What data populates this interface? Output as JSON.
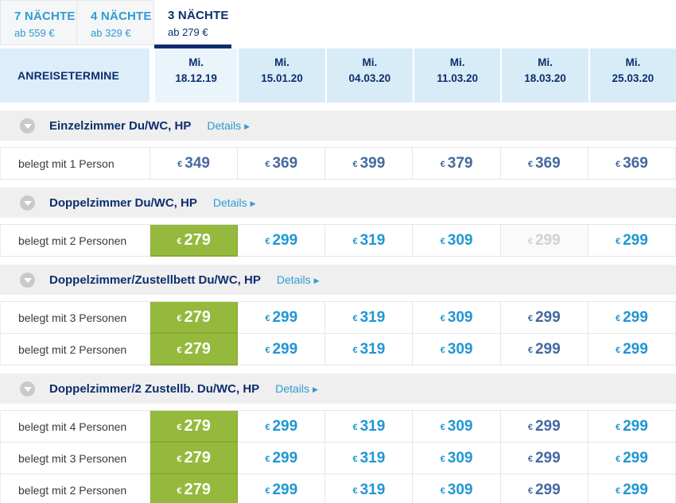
{
  "colors": {
    "accent_navy": "#0d2e6d",
    "link_blue": "#2e9bd2",
    "bright_price_blue": "#2196d4",
    "steel_price_blue": "#46699f",
    "best_price_green": "#94b93c",
    "sold_out_gray": "#cdd2d8"
  },
  "tabs": [
    {
      "label": "7 NÄCHTE",
      "sub": "ab 559 €",
      "active": false
    },
    {
      "label": "4 NÄCHTE",
      "sub": "ab 329 €",
      "active": false
    },
    {
      "label": "3 NÄCHTE",
      "sub": "ab 279 €",
      "active": true
    }
  ],
  "header": {
    "label": "ANREISETERMINE",
    "dates": [
      {
        "day": "Mi.",
        "date": "18.12.19"
      },
      {
        "day": "Mi.",
        "date": "15.01.20"
      },
      {
        "day": "Mi.",
        "date": "04.03.20"
      },
      {
        "day": "Mi.",
        "date": "11.03.20"
      },
      {
        "day": "Mi.",
        "date": "18.03.20"
      },
      {
        "day": "Mi.",
        "date": "25.03.20"
      }
    ]
  },
  "details_label": "Details",
  "groups": [
    {
      "title": "Einzelzimmer Du/WC, HP",
      "rows": [
        {
          "label": "belegt mit 1 Person",
          "prices": [
            {
              "currency": "€",
              "amount": "349",
              "style": "steel"
            },
            {
              "currency": "€",
              "amount": "369",
              "style": "steel"
            },
            {
              "currency": "€",
              "amount": "399",
              "style": "steel"
            },
            {
              "currency": "€",
              "amount": "379",
              "style": "steel"
            },
            {
              "currency": "€",
              "amount": "369",
              "style": "steel"
            },
            {
              "currency": "€",
              "amount": "369",
              "style": "steel"
            }
          ]
        }
      ]
    },
    {
      "title": "Doppelzimmer Du/WC, HP",
      "rows": [
        {
          "label": "belegt mit 2 Personen",
          "prices": [
            {
              "currency": "€",
              "amount": "279",
              "style": "best"
            },
            {
              "currency": "€",
              "amount": "299",
              "style": "bright"
            },
            {
              "currency": "€",
              "amount": "319",
              "style": "bright"
            },
            {
              "currency": "€",
              "amount": "309",
              "style": "bright"
            },
            {
              "currency": "€",
              "amount": "299",
              "style": "muted"
            },
            {
              "currency": "€",
              "amount": "299",
              "style": "bright"
            }
          ]
        }
      ]
    },
    {
      "title": "Doppelzimmer/Zustellbett Du/WC, HP",
      "rows": [
        {
          "label": "belegt mit 3 Personen",
          "prices": [
            {
              "currency": "€",
              "amount": "279",
              "style": "best"
            },
            {
              "currency": "€",
              "amount": "299",
              "style": "bright"
            },
            {
              "currency": "€",
              "amount": "319",
              "style": "bright"
            },
            {
              "currency": "€",
              "amount": "309",
              "style": "bright"
            },
            {
              "currency": "€",
              "amount": "299",
              "style": "steel"
            },
            {
              "currency": "€",
              "amount": "299",
              "style": "bright"
            }
          ]
        },
        {
          "label": "belegt mit 2 Personen",
          "prices": [
            {
              "currency": "€",
              "amount": "279",
              "style": "best"
            },
            {
              "currency": "€",
              "amount": "299",
              "style": "bright"
            },
            {
              "currency": "€",
              "amount": "319",
              "style": "bright"
            },
            {
              "currency": "€",
              "amount": "309",
              "style": "bright"
            },
            {
              "currency": "€",
              "amount": "299",
              "style": "steel"
            },
            {
              "currency": "€",
              "amount": "299",
              "style": "bright"
            }
          ]
        }
      ]
    },
    {
      "title": "Doppelzimmer/2 Zustellb. Du/WC, HP",
      "rows": [
        {
          "label": "belegt mit 4 Personen",
          "prices": [
            {
              "currency": "€",
              "amount": "279",
              "style": "best"
            },
            {
              "currency": "€",
              "amount": "299",
              "style": "bright"
            },
            {
              "currency": "€",
              "amount": "319",
              "style": "bright"
            },
            {
              "currency": "€",
              "amount": "309",
              "style": "bright"
            },
            {
              "currency": "€",
              "amount": "299",
              "style": "steel"
            },
            {
              "currency": "€",
              "amount": "299",
              "style": "bright"
            }
          ]
        },
        {
          "label": "belegt mit 3 Personen",
          "prices": [
            {
              "currency": "€",
              "amount": "279",
              "style": "best"
            },
            {
              "currency": "€",
              "amount": "299",
              "style": "bright"
            },
            {
              "currency": "€",
              "amount": "319",
              "style": "bright"
            },
            {
              "currency": "€",
              "amount": "309",
              "style": "bright"
            },
            {
              "currency": "€",
              "amount": "299",
              "style": "steel"
            },
            {
              "currency": "€",
              "amount": "299",
              "style": "bright"
            }
          ]
        },
        {
          "label": "belegt mit 2 Personen",
          "prices": [
            {
              "currency": "€",
              "amount": "279",
              "style": "best"
            },
            {
              "currency": "€",
              "amount": "299",
              "style": "bright"
            },
            {
              "currency": "€",
              "amount": "319",
              "style": "bright"
            },
            {
              "currency": "€",
              "amount": "309",
              "style": "bright"
            },
            {
              "currency": "€",
              "amount": "299",
              "style": "steel"
            },
            {
              "currency": "€",
              "amount": "299",
              "style": "bright"
            }
          ]
        }
      ]
    }
  ]
}
